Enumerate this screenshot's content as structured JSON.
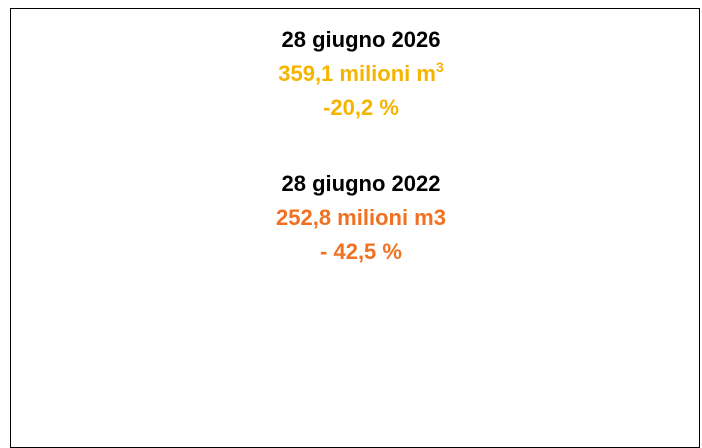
{
  "entries": [
    {
      "date": "28 giugno 2026",
      "volume": "359,1 milioni m",
      "volume_sup": "3",
      "change": "-20,2 %"
    },
    {
      "date": "28 giugno 2022",
      "volume": "252,8 milioni m3",
      "change": "- 42,5 %"
    }
  ]
}
